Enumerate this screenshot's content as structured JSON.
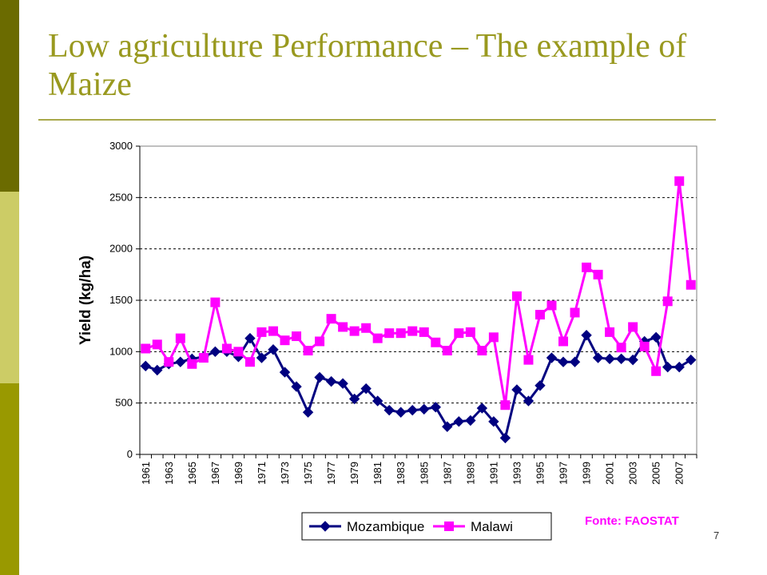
{
  "slide": {
    "title": "Low agriculture Performance – The example of Maize",
    "source_note": "Fonte: FAOSTAT",
    "page_number": "7"
  },
  "colors": {
    "mozambique": "#000080",
    "malawi": "#ff00ff",
    "title": "#99991f"
  },
  "chart_data": {
    "type": "line",
    "title": "",
    "xlabel": "",
    "ylabel": "Yield (kg/ha)",
    "ylim": [
      0,
      3000
    ],
    "yticks": [
      0,
      500,
      1000,
      1500,
      2000,
      2500,
      3000
    ],
    "grid": "horizontal dashed",
    "legend_position": "bottom",
    "x": [
      1961,
      1962,
      1963,
      1964,
      1965,
      1966,
      1967,
      1968,
      1969,
      1970,
      1971,
      1972,
      1973,
      1974,
      1975,
      1976,
      1977,
      1978,
      1979,
      1980,
      1981,
      1982,
      1983,
      1984,
      1985,
      1986,
      1987,
      1988,
      1989,
      1990,
      1991,
      1992,
      1993,
      1994,
      1995,
      1996,
      1997,
      1998,
      1999,
      2000,
      2001,
      2002,
      2003,
      2004,
      2005,
      2006,
      2007,
      2008
    ],
    "xtick_labels": [
      "1961",
      "1963",
      "1965",
      "1967",
      "1969",
      "1971",
      "1973",
      "1975",
      "1977",
      "1979",
      "1981",
      "1983",
      "1985",
      "1987",
      "1989",
      "1991",
      "1993",
      "1995",
      "1997",
      "1999",
      "2001",
      "2003",
      "2005",
      "2007"
    ],
    "series": [
      {
        "name": "Mozambique",
        "marker": "diamond",
        "values": [
          860,
          820,
          880,
          900,
          930,
          950,
          1000,
          1000,
          950,
          1130,
          940,
          1020,
          800,
          660,
          410,
          750,
          710,
          690,
          540,
          640,
          520,
          430,
          410,
          430,
          440,
          460,
          270,
          320,
          330,
          450,
          320,
          160,
          630,
          520,
          670,
          940,
          900,
          900,
          1160,
          940,
          930,
          930,
          920,
          1100,
          1140,
          850,
          850,
          920
        ]
      },
      {
        "name": "Malawi",
        "marker": "square",
        "values": [
          1030,
          1070,
          900,
          1130,
          880,
          940,
          1480,
          1030,
          1000,
          900,
          1190,
          1200,
          1110,
          1150,
          1010,
          1100,
          1320,
          1240,
          1200,
          1230,
          1130,
          1180,
          1180,
          1200,
          1190,
          1090,
          1010,
          1180,
          1190,
          1010,
          1140,
          480,
          1540,
          920,
          1360,
          1450,
          1100,
          1380,
          1820,
          1750,
          1190,
          1040,
          1240,
          1050,
          810,
          1490,
          2660,
          1650
        ]
      }
    ]
  }
}
